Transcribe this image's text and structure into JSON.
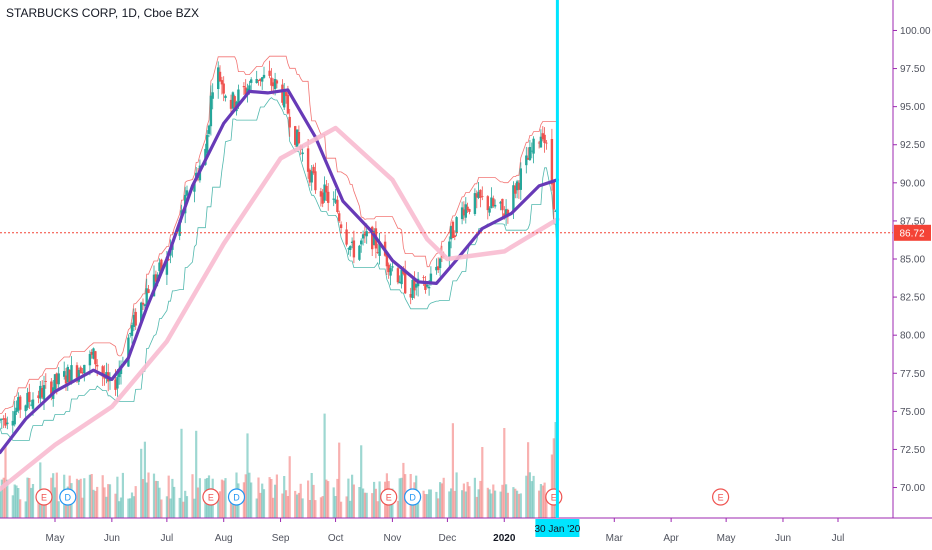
{
  "chart_title": "STARBUCKS CORP, 1D, Cboe BZX",
  "colors": {
    "up": "#26a69a",
    "down": "#ef5350",
    "ma_fast": "#673ab7",
    "ma_slow": "#f8bbd0",
    "price_line": "#f44336",
    "cursor_line": "#00e5ff",
    "axis_border": "#9c27b0",
    "event_red": "#ef5350",
    "event_blue": "#2196f3"
  },
  "icons": {
    "earnings": "E",
    "dividend": "D"
  },
  "chart_data": {
    "type": "candlestick",
    "symbol": "STARBUCKS CORP",
    "interval": "1D",
    "exchange": "Cboe BZX",
    "x_start": "2019-04-01",
    "x_end": "2020-07-31",
    "y_range": [
      68,
      102
    ],
    "y_ticks": [
      "70.00",
      "72.50",
      "75.00",
      "77.50",
      "80.00",
      "82.50",
      "85.00",
      "87.50",
      "90.00",
      "92.50",
      "95.00",
      "97.50",
      "100.00"
    ],
    "x_ticks": [
      {
        "label": "May",
        "date": "2019-05-01",
        "year": false
      },
      {
        "label": "Jun",
        "date": "2019-06-01",
        "year": false
      },
      {
        "label": "Jul",
        "date": "2019-07-01",
        "year": false
      },
      {
        "label": "Aug",
        "date": "2019-08-01",
        "year": false
      },
      {
        "label": "Sep",
        "date": "2019-09-01",
        "year": false
      },
      {
        "label": "Oct",
        "date": "2019-10-01",
        "year": false
      },
      {
        "label": "Nov",
        "date": "2019-11-01",
        "year": false
      },
      {
        "label": "Dec",
        "date": "2019-12-01",
        "year": false
      },
      {
        "label": "2020",
        "date": "2020-01-01",
        "year": true
      },
      {
        "label": "Mar",
        "date": "2020-03-01",
        "year": false
      },
      {
        "label": "Apr",
        "date": "2020-04-01",
        "year": false
      },
      {
        "label": "May",
        "date": "2020-05-01",
        "year": false
      },
      {
        "label": "Jun",
        "date": "2020-06-01",
        "year": false
      },
      {
        "label": "Jul",
        "date": "2020-07-01",
        "year": false
      }
    ],
    "last_price": 86.72,
    "last_price_label": "86.72",
    "cursor_date": "2020-01-30",
    "cursor_label": "30 Jan '20",
    "ohlc_closes": [
      {
        "date": "2019-04-01",
        "close": 74.4
      },
      {
        "date": "2019-04-15",
        "close": 75.6
      },
      {
        "date": "2019-05-01",
        "close": 76.8
      },
      {
        "date": "2019-05-15",
        "close": 78.0
      },
      {
        "date": "2019-05-22",
        "close": 78.6
      },
      {
        "date": "2019-06-01",
        "close": 76.2
      },
      {
        "date": "2019-06-10",
        "close": 79.8
      },
      {
        "date": "2019-06-20",
        "close": 83.0
      },
      {
        "date": "2019-07-01",
        "close": 84.8
      },
      {
        "date": "2019-07-12",
        "close": 89.0
      },
      {
        "date": "2019-07-22",
        "close": 92.0
      },
      {
        "date": "2019-07-27",
        "close": 97.8
      },
      {
        "date": "2019-08-05",
        "close": 95.2
      },
      {
        "date": "2019-08-20",
        "close": 97.0
      },
      {
        "date": "2019-09-01",
        "close": 96.2
      },
      {
        "date": "2019-09-10",
        "close": 92.8
      },
      {
        "date": "2019-09-20",
        "close": 89.8
      },
      {
        "date": "2019-10-01",
        "close": 88.5
      },
      {
        "date": "2019-10-10",
        "close": 85.5
      },
      {
        "date": "2019-10-20",
        "close": 86.5
      },
      {
        "date": "2019-11-01",
        "close": 84.5
      },
      {
        "date": "2019-11-10",
        "close": 83.0
      },
      {
        "date": "2019-11-20",
        "close": 83.2
      },
      {
        "date": "2019-12-01",
        "close": 86.0
      },
      {
        "date": "2019-12-10",
        "close": 88.5
      },
      {
        "date": "2019-12-20",
        "close": 88.8
      },
      {
        "date": "2020-01-01",
        "close": 88.0
      },
      {
        "date": "2020-01-10",
        "close": 90.5
      },
      {
        "date": "2020-01-22",
        "close": 93.5
      },
      {
        "date": "2020-01-27",
        "close": 90.0
      },
      {
        "date": "2020-01-30",
        "close": 86.72
      }
    ],
    "series": [
      {
        "color_key": "ma_fast",
        "points": [
          {
            "date": "2019-04-01",
            "value": 72.3
          },
          {
            "date": "2019-04-15",
            "value": 74.5
          },
          {
            "date": "2019-05-01",
            "value": 76.3
          },
          {
            "date": "2019-05-22",
            "value": 77.7
          },
          {
            "date": "2019-06-01",
            "value": 77.1
          },
          {
            "date": "2019-06-10",
            "value": 78.5
          },
          {
            "date": "2019-06-20",
            "value": 81.8
          },
          {
            "date": "2019-07-01",
            "value": 85.0
          },
          {
            "date": "2019-07-15",
            "value": 89.8
          },
          {
            "date": "2019-08-01",
            "value": 93.9
          },
          {
            "date": "2019-08-15",
            "value": 96.0
          },
          {
            "date": "2019-08-25",
            "value": 95.9
          },
          {
            "date": "2019-09-05",
            "value": 96.1
          },
          {
            "date": "2019-09-20",
            "value": 93.0
          },
          {
            "date": "2019-10-05",
            "value": 88.8
          },
          {
            "date": "2019-10-20",
            "value": 86.9
          },
          {
            "date": "2019-11-01",
            "value": 84.9
          },
          {
            "date": "2019-11-15",
            "value": 83.5
          },
          {
            "date": "2019-11-25",
            "value": 83.4
          },
          {
            "date": "2019-12-05",
            "value": 84.8
          },
          {
            "date": "2019-12-20",
            "value": 87.0
          },
          {
            "date": "2020-01-05",
            "value": 88.0
          },
          {
            "date": "2020-01-20",
            "value": 89.8
          },
          {
            "date": "2020-01-30",
            "value": 90.2
          }
        ]
      },
      {
        "color_key": "ma_slow",
        "points": [
          {
            "date": "2019-04-01",
            "value": 69.9
          },
          {
            "date": "2019-05-01",
            "value": 72.8
          },
          {
            "date": "2019-06-01",
            "value": 75.3
          },
          {
            "date": "2019-07-01",
            "value": 79.6
          },
          {
            "date": "2019-08-01",
            "value": 86.0
          },
          {
            "date": "2019-09-01",
            "value": 91.6
          },
          {
            "date": "2019-10-01",
            "value": 93.6
          },
          {
            "date": "2019-11-01",
            "value": 90.2
          },
          {
            "date": "2019-11-20",
            "value": 86.3
          },
          {
            "date": "2019-12-01",
            "value": 85.0
          },
          {
            "date": "2020-01-01",
            "value": 85.5
          },
          {
            "date": "2020-01-30",
            "value": 87.6
          }
        ]
      }
    ],
    "events": [
      {
        "type": "earnings",
        "date": "2019-04-25"
      },
      {
        "type": "dividend",
        "date": "2019-05-08"
      },
      {
        "type": "earnings",
        "date": "2019-07-25"
      },
      {
        "type": "dividend",
        "date": "2019-08-08"
      },
      {
        "type": "earnings",
        "date": "2019-10-30"
      },
      {
        "type": "dividend",
        "date": "2019-11-12"
      },
      {
        "type": "earnings",
        "date": "2020-01-28"
      },
      {
        "type": "earnings",
        "date": "2020-04-28"
      }
    ],
    "volume_note_levels": {
      "typical": 0.25,
      "peak": 0.55
    }
  }
}
